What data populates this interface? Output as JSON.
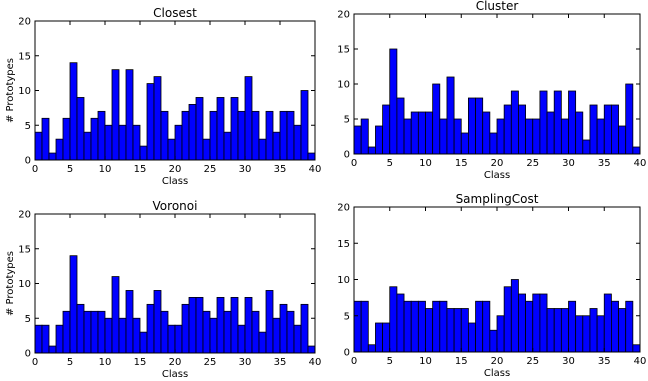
{
  "chart_data": [
    {
      "type": "bar",
      "title": "Closest",
      "xlabel": "Class",
      "ylabel": "# Prototypes",
      "xlim": [
        0,
        40
      ],
      "ylim": [
        0,
        20
      ],
      "xticks": [
        "0",
        "5",
        "10",
        "15",
        "20",
        "25",
        "30",
        "35",
        "40"
      ],
      "yticks": [
        "0",
        "5",
        "10",
        "15",
        "20"
      ],
      "x": [
        0,
        1,
        2,
        3,
        4,
        5,
        6,
        7,
        8,
        9,
        10,
        11,
        12,
        13,
        14,
        15,
        16,
        17,
        18,
        19,
        20,
        21,
        22,
        23,
        24,
        25,
        26,
        27,
        28,
        29,
        30,
        31,
        32,
        33,
        34,
        35,
        36,
        37,
        38,
        39
      ],
      "values": [
        4,
        6,
        1,
        3,
        6,
        14,
        9,
        4,
        6,
        7,
        5,
        13,
        5,
        13,
        5,
        2,
        11,
        12,
        7,
        3,
        5,
        7,
        8,
        9,
        3,
        7,
        9,
        4,
        9,
        7,
        12,
        7,
        3,
        7,
        4,
        7,
        7,
        5,
        10,
        1
      ]
    },
    {
      "type": "bar",
      "title": "Cluster",
      "xlabel": "Class",
      "ylabel": "",
      "xlim": [
        0,
        40
      ],
      "ylim": [
        0,
        20
      ],
      "xticks": [
        "0",
        "5",
        "10",
        "15",
        "20",
        "25",
        "30",
        "35",
        "40"
      ],
      "yticks": [
        "0",
        "5",
        "10",
        "15",
        "20"
      ],
      "x": [
        0,
        1,
        2,
        3,
        4,
        5,
        6,
        7,
        8,
        9,
        10,
        11,
        12,
        13,
        14,
        15,
        16,
        17,
        18,
        19,
        20,
        21,
        22,
        23,
        24,
        25,
        26,
        27,
        28,
        29,
        30,
        31,
        32,
        33,
        34,
        35,
        36,
        37,
        38,
        39
      ],
      "values": [
        4,
        5,
        1,
        4,
        7,
        15,
        8,
        5,
        6,
        6,
        6,
        10,
        5,
        11,
        5,
        3,
        8,
        8,
        6,
        3,
        5,
        7,
        9,
        7,
        5,
        5,
        9,
        6,
        9,
        5,
        9,
        6,
        2,
        7,
        5,
        7,
        7,
        4,
        10,
        1
      ]
    },
    {
      "type": "bar",
      "title": "Voronoi",
      "xlabel": "Class",
      "ylabel": "# Prototypes",
      "xlim": [
        0,
        40
      ],
      "ylim": [
        0,
        20
      ],
      "xticks": [
        "0",
        "5",
        "10",
        "15",
        "20",
        "25",
        "30",
        "35",
        "40"
      ],
      "yticks": [
        "0",
        "5",
        "10",
        "15",
        "20"
      ],
      "x": [
        0,
        1,
        2,
        3,
        4,
        5,
        6,
        7,
        8,
        9,
        10,
        11,
        12,
        13,
        14,
        15,
        16,
        17,
        18,
        19,
        20,
        21,
        22,
        23,
        24,
        25,
        26,
        27,
        28,
        29,
        30,
        31,
        32,
        33,
        34,
        35,
        36,
        37,
        38,
        39
      ],
      "values": [
        4,
        4,
        1,
        4,
        6,
        14,
        7,
        6,
        6,
        6,
        5,
        11,
        5,
        9,
        5,
        3,
        7,
        9,
        6,
        4,
        4,
        7,
        8,
        8,
        6,
        5,
        8,
        6,
        8,
        4,
        8,
        6,
        3,
        9,
        5,
        7,
        6,
        4,
        7,
        1
      ]
    },
    {
      "type": "bar",
      "title": "SamplingCost",
      "xlabel": "Class",
      "ylabel": "",
      "xlim": [
        0,
        40
      ],
      "ylim": [
        0,
        20
      ],
      "xticks": [
        "0",
        "5",
        "10",
        "15",
        "20",
        "25",
        "30",
        "35",
        "40"
      ],
      "yticks": [
        "0",
        "5",
        "10",
        "15",
        "20"
      ],
      "x": [
        0,
        1,
        2,
        3,
        4,
        5,
        6,
        7,
        8,
        9,
        10,
        11,
        12,
        13,
        14,
        15,
        16,
        17,
        18,
        19,
        20,
        21,
        22,
        23,
        24,
        25,
        26,
        27,
        28,
        29,
        30,
        31,
        32,
        33,
        34,
        35,
        36,
        37,
        38,
        39
      ],
      "values": [
        7,
        7,
        1,
        4,
        4,
        9,
        8,
        7,
        7,
        7,
        6,
        7,
        7,
        6,
        6,
        6,
        4,
        7,
        7,
        3,
        5,
        9,
        10,
        8,
        7,
        8,
        8,
        6,
        6,
        6,
        7,
        5,
        5,
        6,
        5,
        8,
        7,
        6,
        7,
        1
      ]
    }
  ],
  "colors": {
    "bar_fill": "#0000ff",
    "bar_edge": "#000000",
    "axes": "#000000"
  }
}
